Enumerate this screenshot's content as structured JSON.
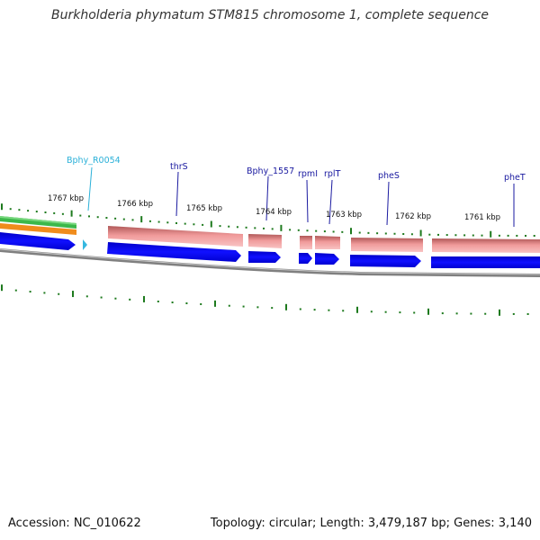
{
  "title": "Burkholderia phymatum STM815 chromosome 1, complete sequence",
  "footer": {
    "accession": "Accession: NC_010622",
    "summary": "Topology: circular; Length: 3,479,187 bp; Genes: 3,140"
  },
  "scale_labels": [
    "1767 kbp",
    "1766 kbp",
    "1765 kbp",
    "1764 kbp",
    "1763 kbp",
    "1762 kbp",
    "1761 kbp"
  ],
  "gene_labels": [
    {
      "name": "Bphy_R0054",
      "color": "#2ab0d8"
    },
    {
      "name": "thrS",
      "color": "#1a1aa0"
    },
    {
      "name": "Bphy_1557",
      "color": "#1a1aa0"
    },
    {
      "name": "rpmI",
      "color": "#1a1aa0"
    },
    {
      "name": "rplT",
      "color": "#1a1aa0"
    },
    {
      "name": "pheS",
      "color": "#1a1aa0"
    },
    {
      "name": "pheT",
      "color": "#1a1aa0"
    }
  ],
  "colors": {
    "cds_forward": "#0000e6",
    "rna": "#36b8e0",
    "gene_pink": "#e88a8a",
    "gc_green": "#3cb84a",
    "gc_orange": "#f08c1c",
    "backbone": "#808080",
    "ticks": "#1e7a1e"
  }
}
